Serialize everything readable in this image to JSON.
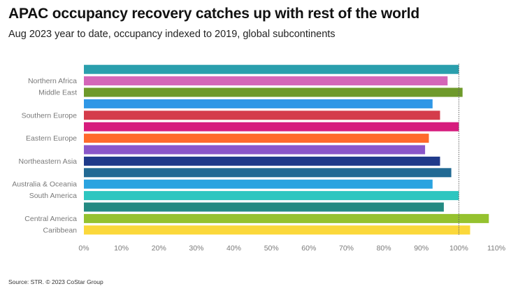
{
  "title": "APAC occupancy recovery catches up with rest of the world",
  "subtitle": "Aug 2023 year to date, occupancy indexed to 2019, global subcontinents",
  "source": "Source: STR. © 2023 CoStar Group",
  "chart_data": {
    "type": "bar",
    "orientation": "horizontal",
    "title": "APAC occupancy recovery catches up with rest of the world",
    "subtitle": "Aug 2023 year to date, occupancy indexed to 2019, global subcontinents",
    "categories": [
      "",
      "Northern Africa",
      "Middle East",
      "",
      "Southern Europe",
      "",
      "Eastern Europe",
      "",
      "Northeastern Asia",
      "",
      "Australia & Oceania",
      "South America",
      "",
      "Central America",
      "Caribbean"
    ],
    "values": [
      100,
      97,
      101,
      93,
      95,
      100,
      92,
      91,
      95,
      98,
      93,
      100,
      96,
      108,
      103
    ],
    "colors": [
      "#2a9fad",
      "#d466b8",
      "#6e9a2a",
      "#2f97e6",
      "#d43c4b",
      "#d61c7d",
      "#ff6a2b",
      "#8a57c9",
      "#1f3a8a",
      "#226a94",
      "#2aa3e0",
      "#2ec6c0",
      "#238a82",
      "#95c22f",
      "#fbd83b"
    ],
    "xlim": [
      0,
      110
    ],
    "xticks": [
      "0%",
      "10%",
      "20%",
      "30%",
      "40%",
      "50%",
      "60%",
      "70%",
      "80%",
      "90%",
      "100%",
      "110%"
    ],
    "reference_line": 100,
    "grid": false
  }
}
